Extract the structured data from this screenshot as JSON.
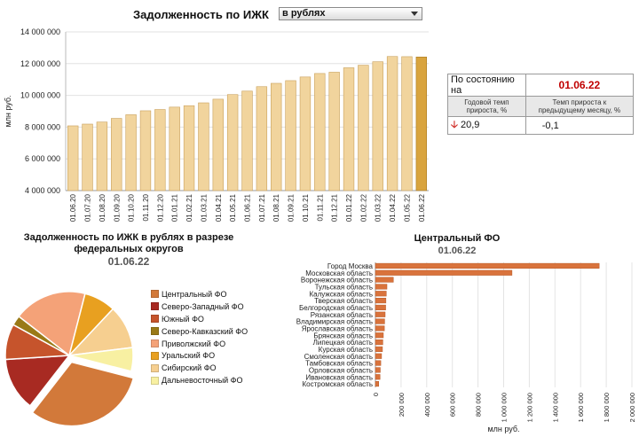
{
  "header": {
    "title": "Задолженность по ИЖК",
    "currency_selected": "в рублях"
  },
  "summary": {
    "as_of_label": "По состоянию на",
    "as_of_date": "01.06.22",
    "col1_header": "Годовой темп прироста, %",
    "col2_header": "Темп прироста к предыдущему месяцу, %",
    "annual_growth": "20,9",
    "monthly_growth": "-0,1",
    "trend_icon": "down-arrow-icon"
  },
  "chart_data": [
    {
      "type": "bar",
      "title": "",
      "xlabel": "",
      "ylabel": "млн руб.",
      "ylim": [
        4000000,
        14000000
      ],
      "yticks": [
        4000000,
        6000000,
        8000000,
        10000000,
        12000000,
        14000000
      ],
      "ytick_labels": [
        "4 000 000",
        "6 000 000",
        "8 000 000",
        "10 000 000",
        "12 000 000",
        "14 000 000"
      ],
      "grid": true,
      "categories": [
        "01.06.20",
        "01.07.20",
        "01.08.20",
        "01.09.20",
        "01.10.20",
        "01.11.20",
        "01.12.20",
        "01.01.21",
        "01.02.21",
        "01.03.21",
        "01.04.21",
        "01.05.21",
        "01.06.21",
        "01.07.21",
        "01.08.21",
        "01.09.21",
        "01.10.21",
        "01.11.21",
        "01.12.21",
        "01.01.22",
        "01.02.22",
        "01.03.22",
        "01.04.22",
        "01.05.22",
        "01.06.22"
      ],
      "values": [
        8080000,
        8190000,
        8320000,
        8550000,
        8780000,
        9030000,
        9110000,
        9260000,
        9350000,
        9530000,
        9760000,
        10050000,
        10270000,
        10550000,
        10760000,
        10930000,
        11160000,
        11380000,
        11460000,
        11740000,
        11900000,
        12120000,
        12450000,
        12440000,
        12420000
      ],
      "colors": {
        "bar": "#f1d49d",
        "bar_edge": "#c9a15c",
        "highlight": "#d9a43e",
        "highlight_edge": "#a77a22"
      }
    },
    {
      "type": "pie",
      "title": "Задолженность по ИЖК в рублях в  разрезе федеральных округов",
      "date": "01.06.22",
      "labels": [
        "Центральный ФО",
        "Северо-Западный ФО",
        "Южный ФО",
        "Северо-Кавказский ФО",
        "Приволжский ФО",
        "Уральский ФО",
        "Сибирский ФО",
        "Дальневосточный ФО"
      ],
      "values": [
        31.5,
        13.5,
        9.0,
        2.5,
        18.5,
        8.0,
        11.0,
        6.0
      ],
      "colors": [
        "#d2793a",
        "#a82a22",
        "#c6542c",
        "#9a7a17",
        "#f4a278",
        "#e8a020",
        "#f6cf90",
        "#f8f0a2"
      ],
      "exploded": "Центральный ФО"
    },
    {
      "type": "bar",
      "orientation": "horizontal",
      "title": "Центральный ФО",
      "date": "01.06.22",
      "xlabel": "млн руб.",
      "ylabel": "",
      "xlim": [
        0,
        2000000
      ],
      "xticks": [
        0,
        200000,
        400000,
        600000,
        800000,
        1000000,
        1200000,
        1400000,
        1600000,
        1800000,
        2000000
      ],
      "xtick_labels": [
        "0",
        "200 000",
        "400 000",
        "600 000",
        "800 000",
        "1 000 000",
        "1 200 000",
        "1 400 000",
        "1 600 000",
        "1 800 000",
        "2 000 000"
      ],
      "grid": true,
      "categories": [
        "Город Москва",
        "Московская область",
        "Воронежская область",
        "Тульская область",
        "Калужская область",
        "Тверская область",
        "Белгородская область",
        "Рязанская область",
        "Владимирская область",
        "Ярославская область",
        "Брянская область",
        "Липецкая область",
        "Курская область",
        "Смоленская область",
        "Тамбовская область",
        "Орловская область",
        "Ивановская область",
        "Костромская область"
      ],
      "values": [
        1745000,
        1065000,
        140000,
        90000,
        85000,
        82000,
        80000,
        76000,
        72000,
        70000,
        62000,
        58000,
        55000,
        48000,
        42000,
        38000,
        36000,
        26000
      ],
      "colors": {
        "bar": "#d9733c",
        "bar_edge": "#b85a28"
      }
    }
  ]
}
